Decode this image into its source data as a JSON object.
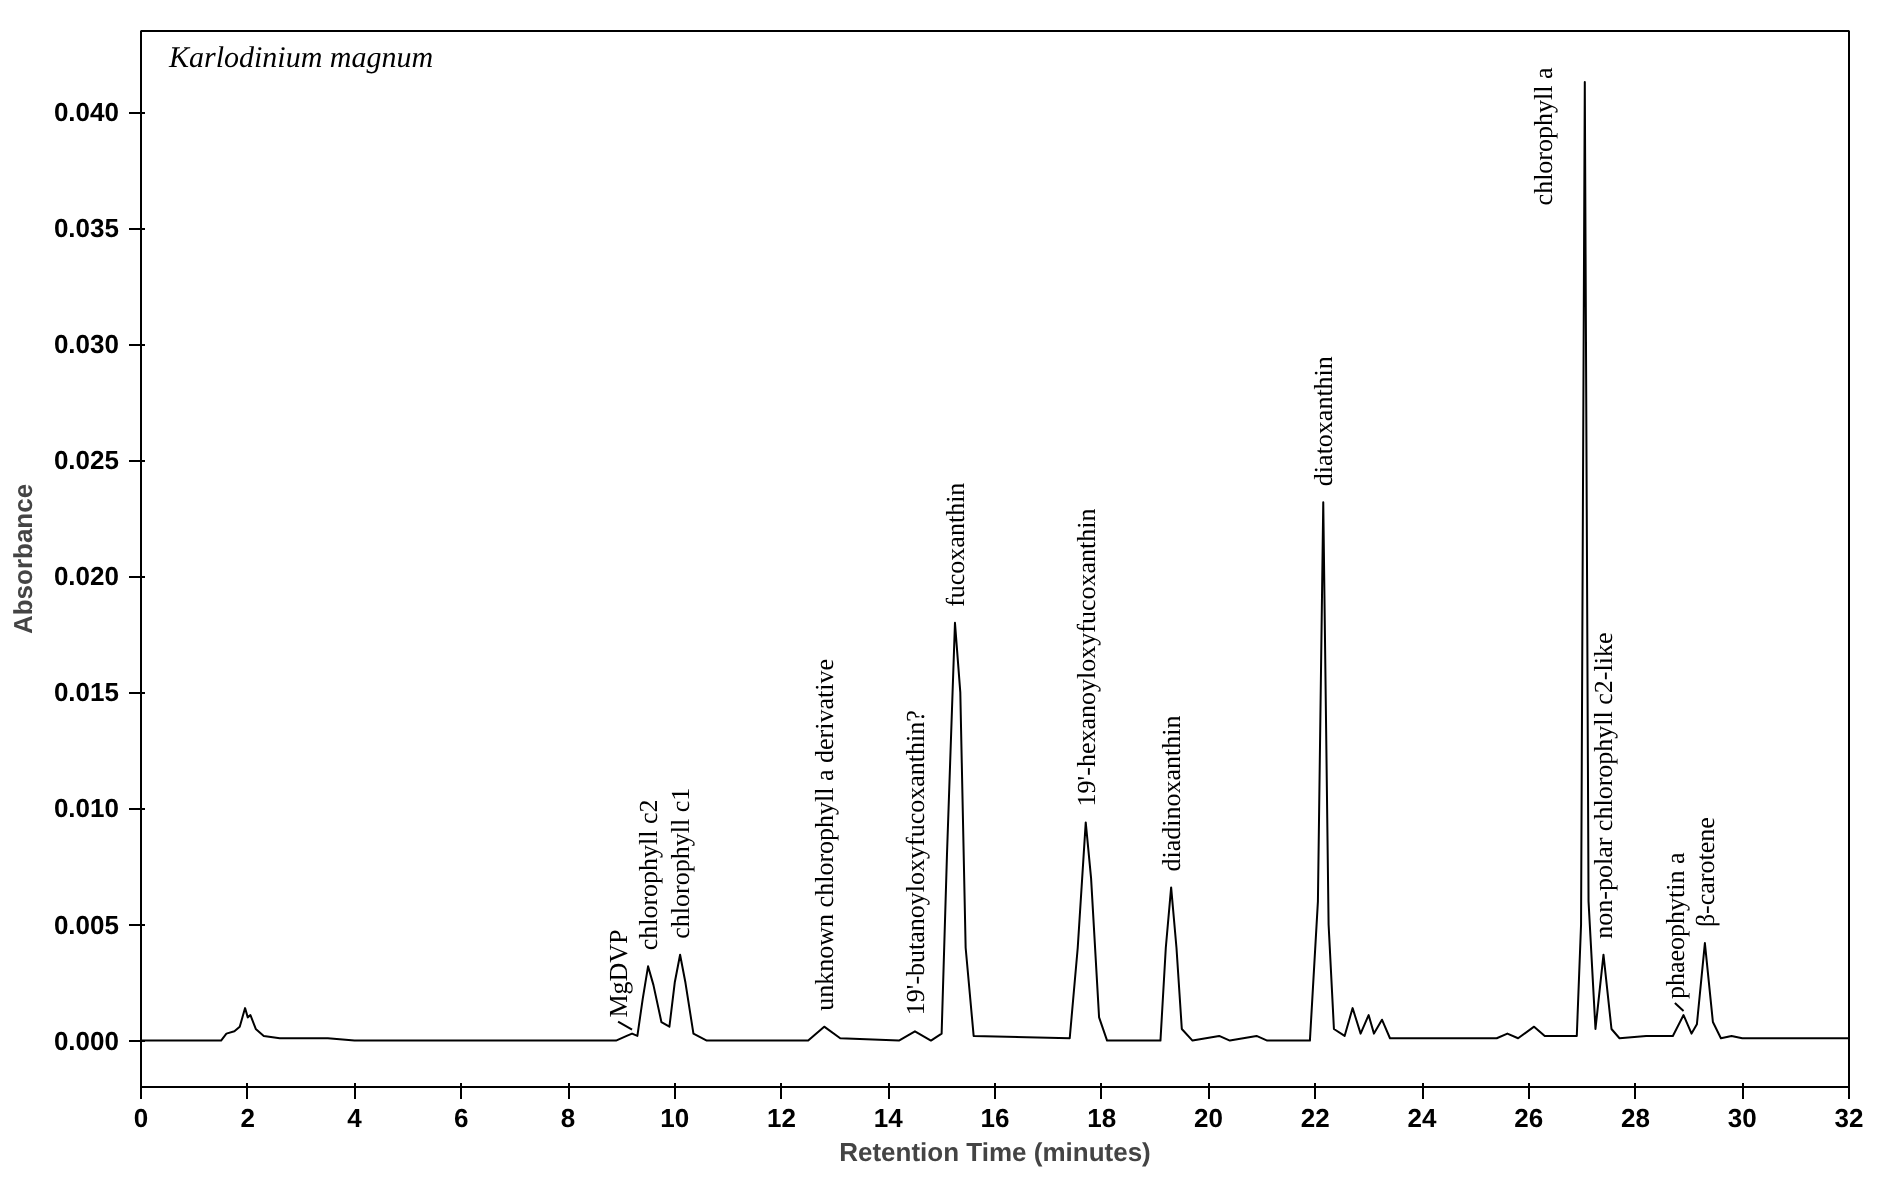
{
  "chart_data": {
    "type": "line",
    "title": "Karlodinium magnum",
    "xlabel": "Retention Time (minutes)",
    "ylabel": "Absorbance",
    "x": [
      0,
      1.5,
      1.6,
      1.75,
      1.85,
      1.95,
      2.0,
      2.05,
      2.15,
      2.3,
      2.6,
      3.5,
      4,
      8.9,
      9.1,
      9.2,
      9.3,
      9.4,
      9.5,
      9.6,
      9.75,
      9.9,
      10.0,
      10.1,
      10.2,
      10.35,
      10.6,
      12.5,
      12.8,
      13.1,
      14.2,
      14.5,
      14.8,
      15.0,
      15.1,
      15.25,
      15.35,
      15.45,
      15.6,
      17.4,
      17.55,
      17.7,
      17.8,
      17.95,
      18.1,
      19.1,
      19.2,
      19.3,
      19.4,
      19.5,
      19.7,
      20.2,
      20.4,
      20.9,
      21.1,
      21.9,
      22.05,
      22.15,
      22.25,
      22.35,
      22.55,
      22.7,
      22.85,
      23.0,
      23.1,
      23.25,
      23.4,
      25.4,
      25.6,
      25.8,
      26.1,
      26.3,
      26.9,
      26.98,
      27.05,
      27.12,
      27.25,
      27.4,
      27.55,
      27.7,
      28.2,
      28.7,
      28.9,
      29.05,
      29.15,
      29.3,
      29.45,
      29.6,
      29.8,
      30,
      32
    ],
    "series": [
      {
        "color": "#000000",
        "values": [
          0,
          0,
          0.0003,
          0.0004,
          0.0006,
          0.0014,
          0.001,
          0.0011,
          0.0005,
          0.0002,
          0.0001,
          0.0001,
          0,
          0,
          0.0002,
          0.0003,
          0.0002,
          0.0018,
          0.0032,
          0.0024,
          0.0008,
          0.0006,
          0.0025,
          0.0037,
          0.0025,
          0.0003,
          0,
          0,
          0.0006,
          0.0001,
          0,
          0.0004,
          0,
          0.0003,
          0.008,
          0.018,
          0.015,
          0.004,
          0.0002,
          0.0001,
          0.004,
          0.0094,
          0.007,
          0.001,
          0,
          0,
          0.004,
          0.0066,
          0.004,
          0.0005,
          0,
          0.0002,
          0,
          0.0002,
          0,
          0,
          0.006,
          0.0232,
          0.005,
          0.0005,
          0.0002,
          0.0014,
          0.0003,
          0.0011,
          0.0003,
          0.0009,
          0.0001,
          0.0001,
          0.0003,
          0.0001,
          0.0006,
          0.0002,
          0.0002,
          0.005,
          0.0413,
          0.006,
          0.0005,
          0.0037,
          0.0005,
          0.0001,
          0.0002,
          0.0002,
          0.0011,
          0.0003,
          0.0007,
          0.0042,
          0.0008,
          0.0001,
          0.0002,
          0.0001,
          0.0001
        ]
      }
    ],
    "xlim": [
      0,
      32
    ],
    "ylim": [
      -0.002,
      0.0435
    ],
    "xticks": [
      0,
      2,
      4,
      6,
      8,
      10,
      12,
      14,
      16,
      18,
      20,
      22,
      24,
      26,
      28,
      30,
      32
    ],
    "yticks": [
      {
        "value": 0,
        "label": "0.000"
      },
      {
        "value": 0.005,
        "label": "0.005"
      },
      {
        "value": 0.01,
        "label": "0.010"
      },
      {
        "value": 0.015,
        "label": "0.015"
      },
      {
        "value": 0.02,
        "label": "0.020"
      },
      {
        "value": 0.025,
        "label": "0.025"
      },
      {
        "value": 0.03,
        "label": "0.030"
      },
      {
        "value": 0.035,
        "label": "0.035"
      },
      {
        "value": 0.04,
        "label": "0.040"
      }
    ],
    "grid": false,
    "annotations": [
      {
        "text": "MgDVP",
        "x": 9.2,
        "y": 0.0003
      },
      {
        "text": "chlorophyll c2",
        "x": 9.5,
        "y": 0.0032
      },
      {
        "text": "chlorophyll c1",
        "x": 10.1,
        "y": 0.0037
      },
      {
        "text": "unknown chlorophyll a derivative",
        "x": 12.8,
        "y": 0.0006
      },
      {
        "text": "19'-butanoyloxyfucoxanthin?",
        "x": 14.5,
        "y": 0.0004
      },
      {
        "text": "fucoxanthin",
        "x": 15.25,
        "y": 0.018
      },
      {
        "text": "19'-hexanoyloxyfucoxanthin",
        "x": 17.7,
        "y": 0.0094
      },
      {
        "text": "diadinoxanthin",
        "x": 19.3,
        "y": 0.0066
      },
      {
        "text": "diatoxanthin",
        "x": 22.15,
        "y": 0.0232
      },
      {
        "text": "chlorophyll a",
        "x": 27.05,
        "y": 0.0413
      },
      {
        "text": "non-polar chlorophyll c2-like",
        "x": 27.4,
        "y": 0.0037
      },
      {
        "text": "phaeophytin a",
        "x": 28.9,
        "y": 0.0011
      },
      {
        "text": "β-carotene",
        "x": 29.3,
        "y": 0.0042
      }
    ]
  }
}
